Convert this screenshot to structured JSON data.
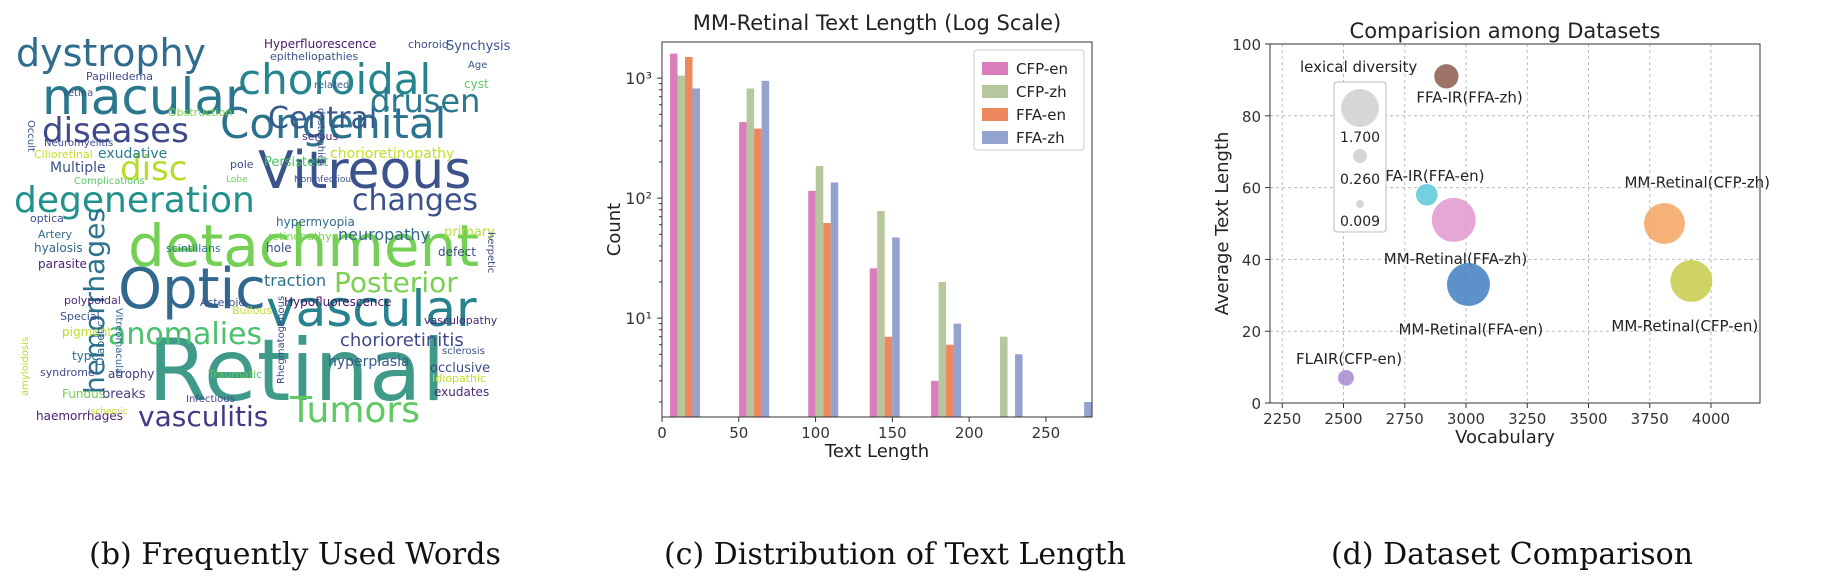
{
  "captions": {
    "b": "(b) Frequently Used Words",
    "c": "(c) Distribution of Text Length",
    "d": "(d) Dataset Comparison"
  },
  "wordcloud": [
    {
      "text": "Retinal",
      "color": "#3f9a8a"
    },
    {
      "text": "detachment",
      "color": "#74d055"
    },
    {
      "text": "Vitreous",
      "color": "#3b528b"
    },
    {
      "text": "Optic",
      "color": "#31688e"
    },
    {
      "text": "Congenital",
      "color": "#2c728e"
    },
    {
      "text": "vascular",
      "color": "#26828e"
    },
    {
      "text": "choroidal",
      "color": "#25858e"
    },
    {
      "text": "macular",
      "color": "#2a788e"
    },
    {
      "text": "degeneration",
      "color": "#21918c"
    },
    {
      "text": "diseases",
      "color": "#3e4a89"
    },
    {
      "text": "dystrophy",
      "color": "#2f6c8e"
    },
    {
      "text": "Tumors",
      "color": "#5ec962"
    },
    {
      "text": "vasculitis",
      "color": "#443983"
    },
    {
      "text": "disc",
      "color": "#b5de2b"
    },
    {
      "text": "Central",
      "color": "#38598c"
    },
    {
      "text": "drusen",
      "color": "#2a788e"
    },
    {
      "text": "changes",
      "color": "#3b528b"
    },
    {
      "text": "Posterior",
      "color": "#7ad151"
    },
    {
      "text": "anomalies",
      "color": "#4ac16d"
    },
    {
      "text": "hemorrhages",
      "color": "#2c728e"
    },
    {
      "text": "chorioretinitis",
      "color": "#3e4a89"
    },
    {
      "text": "neuropathy",
      "color": "#31688e"
    },
    {
      "text": "chorioretinopathy",
      "color": "#c2df23"
    },
    {
      "text": "exudative",
      "color": "#287d8e"
    },
    {
      "text": "Multiple",
      "color": "#3b528b"
    },
    {
      "text": "traction",
      "color": "#2c728e"
    },
    {
      "text": "Hypofluorescence",
      "color": "#471365"
    },
    {
      "text": "Hyperfluorescence",
      "color": "#48186a"
    },
    {
      "text": "Persistent",
      "color": "#4ac16d"
    },
    {
      "text": "hyperplasia",
      "color": "#38598c"
    },
    {
      "text": "occlusive",
      "color": "#3e4a89"
    },
    {
      "text": "exudates",
      "color": "#482878"
    },
    {
      "text": "breaks",
      "color": "#433e85"
    },
    {
      "text": "haemorrhages",
      "color": "#481f70"
    },
    {
      "text": "Fundus",
      "color": "#73d056"
    },
    {
      "text": "atrophy",
      "color": "#443983"
    },
    {
      "text": "syndrome",
      "color": "#3e4a89"
    },
    {
      "text": "Special",
      "color": "#3b528b"
    },
    {
      "text": "pigment",
      "color": "#b8de29"
    },
    {
      "text": "type",
      "color": "#2c728e"
    },
    {
      "text": "polypoidal",
      "color": "#482878"
    },
    {
      "text": "parasite",
      "color": "#482475"
    },
    {
      "text": "hyalosis",
      "color": "#31688e"
    },
    {
      "text": "Artery",
      "color": "#2f6c8e"
    },
    {
      "text": "optica",
      "color": "#3b528b"
    },
    {
      "text": "Cilioretinal",
      "color": "#c8e020"
    },
    {
      "text": "Neuromyelitis",
      "color": "#3e4a89"
    },
    {
      "text": "Complications",
      "color": "#5ec962"
    },
    {
      "text": "Papilledema",
      "color": "#3e4a89"
    },
    {
      "text": "retina",
      "color": "#3b528b"
    },
    {
      "text": "Obstruction",
      "color": "#7ad151"
    },
    {
      "text": "serous",
      "color": "#482878"
    },
    {
      "text": "related",
      "color": "#38598c"
    },
    {
      "text": "pole",
      "color": "#3e4a89"
    },
    {
      "text": "Lobe",
      "color": "#6ccd5a"
    },
    {
      "text": "hypermyopia",
      "color": "#31688e"
    },
    {
      "text": "retinopathy",
      "color": "#7ad151"
    },
    {
      "text": "Noninfectious",
      "color": "#3b528b"
    },
    {
      "text": "scintillans",
      "color": "#2a788e"
    },
    {
      "text": "hole",
      "color": "#3e4a89"
    },
    {
      "text": "primary",
      "color": "#b5de2b"
    },
    {
      "text": "defect",
      "color": "#3e4a89"
    },
    {
      "text": "Asteroid",
      "color": "#3b528b"
    },
    {
      "text": "Bullous",
      "color": "#c2df23"
    },
    {
      "text": "vasculopathy",
      "color": "#482878"
    },
    {
      "text": "Diabetic",
      "color": "#31688e"
    },
    {
      "text": "Traumatic",
      "color": "#5ec962"
    },
    {
      "text": "Infectious",
      "color": "#3e4a89"
    },
    {
      "text": "Ischemic",
      "color": "#c2df23"
    },
    {
      "text": "Idiopathic",
      "color": "#c2df23"
    },
    {
      "text": "sclerosis",
      "color": "#3b528b"
    },
    {
      "text": "Synchysis",
      "color": "#3b528b"
    },
    {
      "text": "choroid",
      "color": "#3b528b"
    },
    {
      "text": "epitheliopathies",
      "color": "#3b528b"
    },
    {
      "text": "Age",
      "color": "#3b528b"
    },
    {
      "text": "cyst",
      "color": "#5ec962"
    },
    {
      "text": "dystrophies",
      "color": "#3b528b"
    },
    {
      "text": "Occult",
      "color": "#3b528b"
    },
    {
      "text": "herpetic",
      "color": "#3e4a89"
    },
    {
      "text": "Vitreomacular",
      "color": "#31688e"
    },
    {
      "text": "Rhegmatogenous",
      "color": "#3e4a89"
    },
    {
      "text": "amyloidosis",
      "color": "#b5de2b"
    }
  ],
  "chart_data": [
    {
      "type": "bar",
      "title": "MM-Retinal Text Length (Log Scale)",
      "xlabel": "Text Length",
      "ylabel": "Count",
      "yscale": "log",
      "xlim": [
        0,
        280
      ],
      "ylim": [
        1.5,
        2000
      ],
      "x_ticks": [
        0,
        50,
        100,
        150,
        200,
        250
      ],
      "y_ticks": [
        {
          "value": 10,
          "label": "10¹"
        },
        {
          "value": 100,
          "label": "10²"
        },
        {
          "value": 1000,
          "label": "10³"
        }
      ],
      "legend_position": "top-right",
      "categories": [
        15,
        60,
        105,
        145,
        185,
        225,
        270
      ],
      "series": [
        {
          "name": "CFP-en",
          "color": "#d97dbb",
          "values": [
            1600,
            430,
            115,
            26,
            3,
            0,
            0
          ]
        },
        {
          "name": "CFP-zh",
          "color": "#b6c79e",
          "values": [
            1050,
            820,
            185,
            78,
            20,
            7,
            0
          ]
        },
        {
          "name": "FFA-en",
          "color": "#ec875e",
          "values": [
            1500,
            380,
            62,
            7,
            6,
            0,
            0
          ]
        },
        {
          "name": "FFA-zh",
          "color": "#93a2cf",
          "values": [
            820,
            950,
            135,
            47,
            9,
            5,
            2
          ]
        }
      ]
    },
    {
      "type": "scatter",
      "title": "Comparision among Datasets",
      "xlabel": "Vocabulary",
      "ylabel": "Average Text Length",
      "xlim": [
        2200,
        4200
      ],
      "ylim": [
        0,
        100
      ],
      "x_ticks": [
        2250,
        2500,
        2750,
        3000,
        3250,
        3500,
        3750,
        4000
      ],
      "y_ticks": [
        0,
        20,
        40,
        60,
        80,
        100
      ],
      "grid": true,
      "size_legend": {
        "title": "lexical diversity",
        "position": "top-left",
        "entries": [
          {
            "label": "1.700",
            "value": 1.7
          },
          {
            "label": "0.260",
            "value": 0.26
          },
          {
            "label": "0.009",
            "value": 0.009
          }
        ]
      },
      "points": [
        {
          "label": "FFA-IR(FFA-zh)",
          "x": 2920,
          "y": 91,
          "size": 0.3,
          "color": "#8c5a4e"
        },
        {
          "label": "FFA-IR(FFA-en)",
          "x": 2840,
          "y": 58,
          "size": 0.2,
          "color": "#5ac8d8"
        },
        {
          "label": "MM-Retinal(FFA-zh)",
          "x": 2950,
          "y": 51,
          "size": 1.7,
          "color": "#e296cf"
        },
        {
          "label": "MM-Retinal(FFA-en)",
          "x": 3010,
          "y": 33,
          "size": 1.6,
          "color": "#3f7fbf"
        },
        {
          "label": "MM-Retinal(CFP-zh)",
          "x": 3810,
          "y": 50,
          "size": 1.4,
          "color": "#f3a35e"
        },
        {
          "label": "MM-Retinal(CFP-en)",
          "x": 3920,
          "y": 34,
          "size": 1.5,
          "color": "#c7cb48"
        },
        {
          "label": "FLAIR(CFP-en)",
          "x": 2510,
          "y": 7,
          "size": 0.05,
          "color": "#a888d4"
        }
      ]
    }
  ]
}
